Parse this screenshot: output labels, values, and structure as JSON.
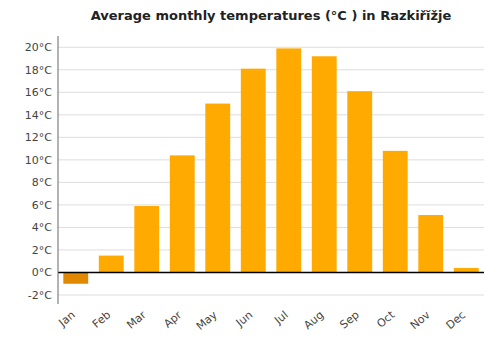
{
  "chart_data": {
    "type": "bar",
    "title": "Average monthly temperatures (°C ) in Razkiřĭžje",
    "categories": [
      "Jan",
      "Feb",
      "Mar",
      "Apr",
      "May",
      "Jun",
      "Jul",
      "Aug",
      "Sep",
      "Oct",
      "Nov",
      "Dec"
    ],
    "values": [
      -1.0,
      1.5,
      5.9,
      10.4,
      15.0,
      18.1,
      19.9,
      19.2,
      16.1,
      10.8,
      5.1,
      0.4
    ],
    "colors": [
      "#E08800",
      "#FFAA00",
      "#FFAA00",
      "#FFAA00",
      "#FFAA00",
      "#FFAA00",
      "#FFAA00",
      "#FFAA00",
      "#FFAA00",
      "#FFAA00",
      "#FFAA00",
      "#FFAA00"
    ],
    "ylim": [
      -2.8,
      21.0
    ],
    "yticks": [
      {
        "value": -2,
        "label": "-2°C"
      },
      {
        "value": 0,
        "label": "0°C"
      },
      {
        "value": 2,
        "label": "2°C"
      },
      {
        "value": 4,
        "label": "4°C"
      },
      {
        "value": 6,
        "label": "6°C"
      },
      {
        "value": 8,
        "label": "8°C"
      },
      {
        "value": 10,
        "label": "10°C"
      },
      {
        "value": 12,
        "label": "12°C"
      },
      {
        "value": 14,
        "label": "14°C"
      },
      {
        "value": 16,
        "label": "16°C"
      },
      {
        "value": 18,
        "label": "18°C"
      },
      {
        "value": 20,
        "label": "20°C"
      }
    ],
    "grid": true
  }
}
